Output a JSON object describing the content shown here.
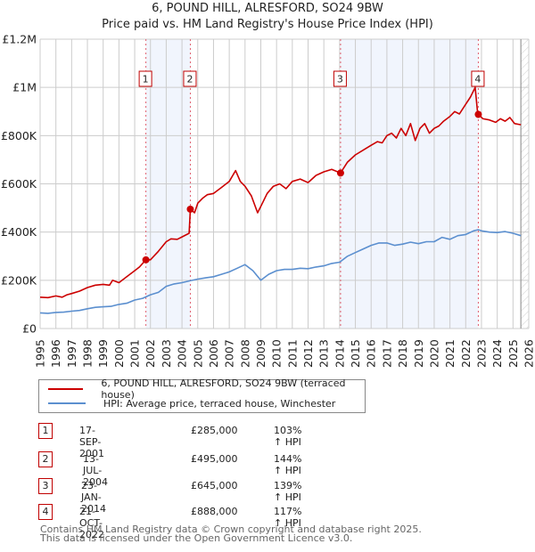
{
  "header": {
    "title": "6, POUND HILL, ALRESFORD, SO24 9BW",
    "subtitle": "Price paid vs. HM Land Registry's House Price Index (HPI)"
  },
  "chart_data": {
    "type": "line",
    "title": "6, POUND HILL, ALRESFORD, SO24 9BW",
    "subtitle": "Price paid vs. HM Land Registry's House Price Index (HPI)",
    "xlabel": "",
    "ylabel": "",
    "xlim": [
      1995,
      2026
    ],
    "ylim": [
      0,
      1200000
    ],
    "grid": true,
    "legend_placement": "below",
    "x_ticks": [
      "1995",
      "1996",
      "1997",
      "1998",
      "1999",
      "2000",
      "2001",
      "2002",
      "2003",
      "2004",
      "2005",
      "2006",
      "2007",
      "2008",
      "2009",
      "2010",
      "2011",
      "2012",
      "2013",
      "2014",
      "2015",
      "2016",
      "2017",
      "2018",
      "2019",
      "2020",
      "2021",
      "2022",
      "2023",
      "2024",
      "2025",
      "2026"
    ],
    "y_ticks": [
      {
        "value": 0,
        "label": "£0"
      },
      {
        "value": 200000,
        "label": "£200K"
      },
      {
        "value": 400000,
        "label": "£400K"
      },
      {
        "value": 600000,
        "label": "£600K"
      },
      {
        "value": 800000,
        "label": "£800K"
      },
      {
        "value": 1000000,
        "label": "£1M"
      },
      {
        "value": 1200000,
        "label": "£1.2M"
      }
    ],
    "forecast_start": 2025.5,
    "series": [
      {
        "name": "6, POUND HILL, ALRESFORD, SO24 9BW (terraced house)",
        "color": "#cc0000",
        "x": [
          1995.0,
          1995.5,
          1996.0,
          1996.4,
          1996.7,
          1997.0,
          1997.5,
          1998.0,
          1998.5,
          1999.0,
          1999.4,
          1999.6,
          2000.0,
          2000.5,
          2001.0,
          2001.3,
          2001.71,
          2002.0,
          2002.5,
          2003.0,
          2003.3,
          2003.7,
          2004.0,
          2004.45,
          2004.53,
          2004.8,
          2005.0,
          2005.3,
          2005.6,
          2006.0,
          2006.5,
          2007.0,
          2007.4,
          2007.7,
          2008.0,
          2008.4,
          2008.8,
          2009.1,
          2009.4,
          2009.8,
          2010.2,
          2010.6,
          2011.0,
          2011.5,
          2012.0,
          2012.5,
          2013.0,
          2013.5,
          2014.06,
          2014.5,
          2015.0,
          2015.5,
          2016.0,
          2016.4,
          2016.7,
          2017.0,
          2017.3,
          2017.6,
          2017.9,
          2018.2,
          2018.5,
          2018.8,
          2019.1,
          2019.4,
          2019.7,
          2020.0,
          2020.3,
          2020.6,
          2021.0,
          2021.3,
          2021.6,
          2022.0,
          2022.3,
          2022.6,
          2022.75,
          2022.8,
          2023.1,
          2023.5,
          2023.9,
          2024.2,
          2024.5,
          2024.8,
          2025.1,
          2025.5
        ],
        "y": [
          130000,
          128000,
          135000,
          130000,
          140000,
          145000,
          155000,
          170000,
          180000,
          183000,
          180000,
          200000,
          190000,
          215000,
          240000,
          255000,
          285000,
          285000,
          320000,
          360000,
          372000,
          370000,
          380000,
          395000,
          495000,
          480000,
          520000,
          540000,
          555000,
          560000,
          585000,
          610000,
          655000,
          610000,
          590000,
          550000,
          480000,
          520000,
          560000,
          590000,
          600000,
          580000,
          610000,
          620000,
          605000,
          635000,
          650000,
          660000,
          645000,
          690000,
          720000,
          740000,
          760000,
          775000,
          770000,
          800000,
          810000,
          790000,
          830000,
          800000,
          850000,
          780000,
          830000,
          850000,
          810000,
          830000,
          840000,
          860000,
          880000,
          900000,
          890000,
          930000,
          960000,
          1000000,
          900000,
          888000,
          870000,
          865000,
          855000,
          870000,
          860000,
          875000,
          850000,
          845000
        ]
      },
      {
        "name": "HPI: Average price, terraced house, Winchester",
        "color": "#5b8fcf",
        "x": [
          1995.0,
          1995.5,
          1996.0,
          1996.5,
          1997.0,
          1997.5,
          1998.0,
          1998.5,
          1999.0,
          1999.5,
          2000.0,
          2000.5,
          2001.0,
          2001.5,
          2002.0,
          2002.5,
          2003.0,
          2003.5,
          2004.0,
          2004.5,
          2005.0,
          2005.5,
          2006.0,
          2006.5,
          2007.0,
          2007.5,
          2008.0,
          2008.5,
          2009.0,
          2009.5,
          2010.0,
          2010.5,
          2011.0,
          2011.5,
          2012.0,
          2012.5,
          2013.0,
          2013.5,
          2014.0,
          2014.5,
          2015.0,
          2015.5,
          2016.0,
          2016.5,
          2017.0,
          2017.5,
          2018.0,
          2018.5,
          2019.0,
          2019.5,
          2020.0,
          2020.5,
          2021.0,
          2021.5,
          2022.0,
          2022.5,
          2022.8,
          2023.0,
          2023.5,
          2024.0,
          2024.5,
          2025.0,
          2025.5
        ],
        "y": [
          65000,
          63000,
          67000,
          68000,
          72000,
          75000,
          82000,
          88000,
          90000,
          92000,
          100000,
          105000,
          118000,
          125000,
          140000,
          150000,
          175000,
          185000,
          190000,
          198000,
          205000,
          210000,
          215000,
          225000,
          235000,
          250000,
          265000,
          240000,
          200000,
          225000,
          240000,
          245000,
          245000,
          250000,
          248000,
          255000,
          260000,
          270000,
          275000,
          300000,
          315000,
          330000,
          345000,
          355000,
          355000,
          345000,
          350000,
          358000,
          352000,
          360000,
          360000,
          378000,
          370000,
          385000,
          390000,
          405000,
          410000,
          405000,
          400000,
          398000,
          402000,
          395000,
          385000
        ]
      }
    ],
    "markers": [
      {
        "id": "1",
        "x": 2001.71,
        "y": 285000
      },
      {
        "id": "2",
        "x": 2004.53,
        "y": 495000
      },
      {
        "id": "3",
        "x": 2014.06,
        "y": 645000
      },
      {
        "id": "4",
        "x": 2022.8,
        "y": 888000
      }
    ],
    "shaded_ranges": [
      [
        2001.71,
        2004.53
      ],
      [
        2014.06,
        2022.8
      ]
    ]
  },
  "legend": {
    "items": [
      {
        "label": "6, POUND HILL, ALRESFORD, SO24 9BW (terraced house)",
        "color": "#cc0000"
      },
      {
        "label": "HPI: Average price, terraced house, Winchester",
        "color": "#5b8fcf"
      }
    ]
  },
  "transactions": [
    {
      "num": "1",
      "date": "17-SEP-2001",
      "price": "£285,000",
      "hpi": "103% ↑ HPI"
    },
    {
      "num": "2",
      "date": "13-JUL-2004",
      "price": "£495,000",
      "hpi": "144% ↑ HPI"
    },
    {
      "num": "3",
      "date": "23-JAN-2014",
      "price": "£645,000",
      "hpi": "139% ↑ HPI"
    },
    {
      "num": "4",
      "date": "21-OCT-2022",
      "price": "£888,000",
      "hpi": "117% ↑ HPI"
    }
  ],
  "footer": {
    "line1": "Contains HM Land Registry data © Crown copyright and database right 2025.",
    "line2": "This data is licensed under the Open Government Licence v3.0."
  }
}
